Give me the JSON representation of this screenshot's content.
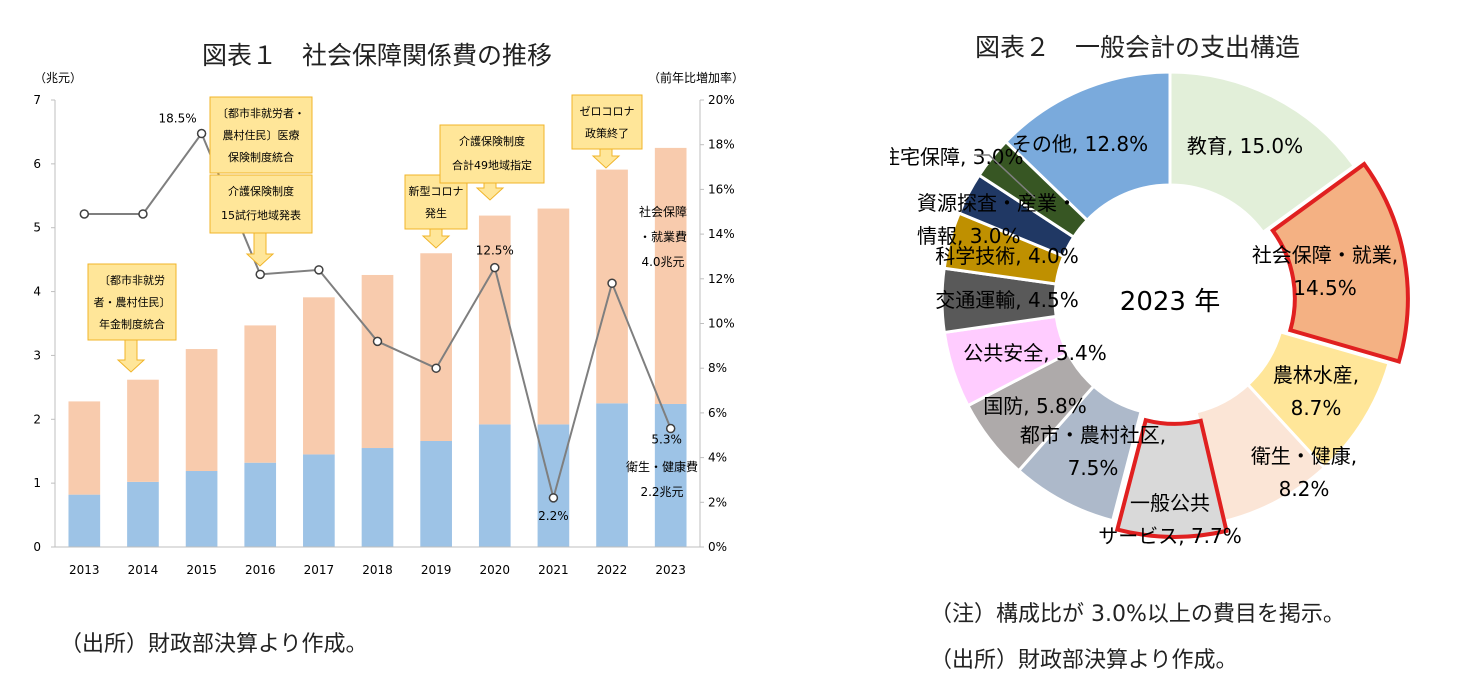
{
  "chart_data": [
    {
      "type": "bar",
      "title": "図表１　社会保障関係費の推移",
      "ylabel_left": "（兆元）",
      "ylabel_right": "（前年比増加率）",
      "categories": [
        "2013",
        "2014",
        "2015",
        "2016",
        "2017",
        "2018",
        "2019",
        "2020",
        "2021",
        "2022",
        "2023"
      ],
      "ylim": [
        0,
        7
      ],
      "y_ticks": [
        "0",
        "1",
        "2",
        "3",
        "4",
        "5",
        "6",
        "7"
      ],
      "y2lim": [
        0,
        20
      ],
      "y2_ticks": [
        "0%",
        "2%",
        "4%",
        "6%",
        "8%",
        "10%",
        "12%",
        "14%",
        "16%",
        "18%",
        "20%"
      ],
      "series": [
        {
          "name": "衛生・健康費",
          "color": "#9dc3e6",
          "values": [
            0.82,
            1.02,
            1.19,
            1.32,
            1.45,
            1.55,
            1.66,
            1.92,
            1.92,
            2.25,
            2.24
          ]
        },
        {
          "name": "社会保障・就業費",
          "color": "#f8cbad",
          "values": [
            1.46,
            1.6,
            1.91,
            2.15,
            2.46,
            2.71,
            2.94,
            3.27,
            3.38,
            3.66,
            4.01
          ]
        }
      ],
      "growth": {
        "color": "#7f7f7f",
        "values": [
          14.9,
          14.9,
          18.5,
          12.2,
          12.4,
          9.2,
          8.0,
          12.5,
          2.2,
          11.8,
          5.3
        ]
      },
      "point_labels": [
        {
          "index": 2,
          "text": "18.5%"
        },
        {
          "index": 7,
          "text": "12.5%"
        },
        {
          "index": 8,
          "text": "2.2%"
        },
        {
          "index": 10,
          "text": "5.3%"
        }
      ],
      "series_labels": {
        "social": [
          "社会保障",
          "・就業費",
          "4.0兆元"
        ],
        "health": [
          "衛生・健康費",
          "2.2兆元"
        ]
      },
      "callouts": [
        {
          "lines": [
            "〔都市非就労",
            "者・農村住民〕",
            "年金制度統合"
          ]
        },
        {
          "lines": [
            "〔都市非就労者・",
            "農村住民〕医療",
            "保険制度統合"
          ]
        },
        {
          "lines": [
            "介護保険制度",
            "15試行地域発表"
          ]
        },
        {
          "lines": [
            "新型コロナ",
            "発生"
          ]
        },
        {
          "lines": [
            "介護保険制度",
            "合計49地域指定"
          ]
        },
        {
          "lines": [
            "ゼロコロナ",
            "政策終了"
          ]
        }
      ],
      "callout_color": "#ffe699",
      "callout_border": "#f0b429",
      "source": "（出所）財政部決算より作成。"
    },
    {
      "type": "pie",
      "title": "図表２　一般会計の支出構造",
      "center_label": "2023 年",
      "slices": [
        {
          "label": "教育",
          "value": 15.0,
          "color": "#e2efd9"
        },
        {
          "label": "社会保障・就業",
          "value": 14.5,
          "color": "#f4b183",
          "highlight": true
        },
        {
          "label": "農林水産",
          "value": 8.7,
          "color": "#ffe699"
        },
        {
          "label": "衛生・健康",
          "value": 8.2,
          "color": "#fbe5d6",
          "highlight": true
        },
        {
          "label": "一般公共サービス",
          "value": 7.7,
          "color": "#d9d9d9"
        },
        {
          "label": "都市・農村社区",
          "value": 7.5,
          "color": "#adb9ca"
        },
        {
          "label": "国防",
          "value": 5.8,
          "color": "#aeaaaa"
        },
        {
          "label": "公共安全",
          "value": 5.4,
          "color": "#ffccff"
        },
        {
          "label": "交通運輸",
          "value": 4.5,
          "color": "#595959"
        },
        {
          "label": "科学技術",
          "value": 4.0,
          "color": "#bf9000"
        },
        {
          "label": "資源探査・産業・情報",
          "value": 3.0,
          "color": "#203864"
        },
        {
          "label": "住宅保障",
          "value": 3.0,
          "color": "#375623"
        },
        {
          "label": "その他",
          "value": 12.8,
          "color": "#7aaadc"
        }
      ],
      "slice_texts": [
        [
          "教育, 15.0%"
        ],
        [
          "社会保障・就業,",
          "14.5%"
        ],
        [
          "農林水産,",
          "8.7%"
        ],
        [
          "衛生・健康,",
          "8.2%"
        ],
        [
          "一般公共",
          "サービス, 7.7%"
        ],
        [
          "都市・農村社区,",
          "7.5%"
        ],
        [
          "国防, 5.8%"
        ],
        [
          "公共安全, 5.4%"
        ],
        [
          "交通運輸, 4.5%"
        ],
        [
          "科学技術, 4.0%"
        ],
        [
          "資源探査・産業・",
          "情報, 3.0%"
        ],
        [
          "住宅保障, 3.0%"
        ],
        [
          "その他, 12.8%"
        ]
      ],
      "highlight_color": "#e02020",
      "note": "（注）構成比が 3.0%以上の費目を掲示。",
      "source": "（出所）財政部決算より作成。"
    }
  ]
}
